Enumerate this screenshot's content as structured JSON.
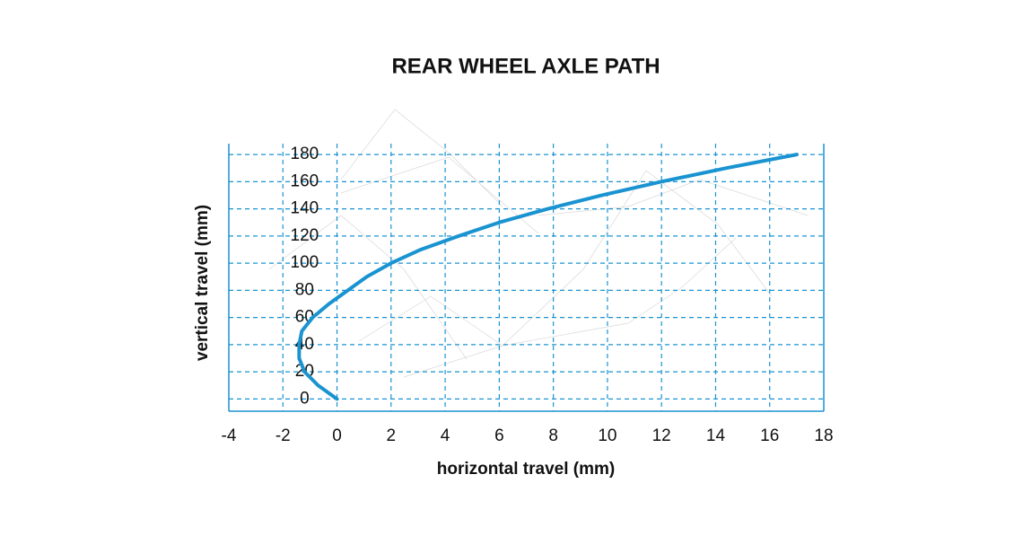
{
  "chart_data": {
    "type": "line",
    "title": "REAR WHEEL AXLE PATH",
    "xlabel": "horizontal travel (mm)",
    "ylabel": "vertical travel (mm)",
    "xlim": [
      -4,
      18
    ],
    "xticks": [
      -4,
      -2,
      0,
      2,
      4,
      6,
      8,
      10,
      12,
      14,
      16,
      18
    ],
    "ylim": [
      -9,
      188
    ],
    "yticks": [
      0,
      20,
      40,
      60,
      80,
      100,
      120,
      140,
      160,
      180
    ],
    "grid": true,
    "series": [
      {
        "name": "axle path",
        "color": "#1a93d1",
        "x": [
          0,
          -0.7,
          -1.2,
          -1.4,
          -1.4,
          -1.3,
          -0.9,
          -0.3,
          0.4,
          1.1,
          2.0,
          3.1,
          4.5,
          6.0,
          7.8,
          9.8,
          12.0,
          14.4,
          17.0
        ],
        "values": [
          0,
          10,
          20,
          30,
          40,
          50,
          60,
          70,
          80,
          90,
          100,
          110,
          120,
          130,
          140,
          150,
          160,
          170,
          180
        ]
      }
    ]
  }
}
